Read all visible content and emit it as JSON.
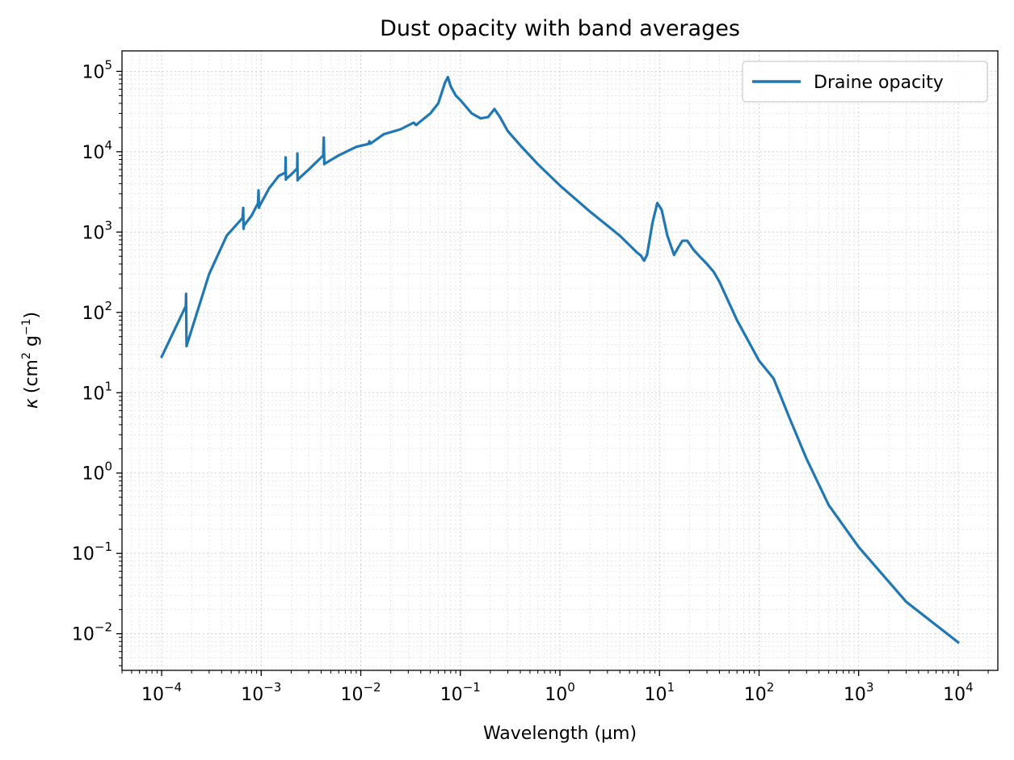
{
  "chart_data": {
    "type": "line",
    "title": "Dust opacity with band averages",
    "xlabel": "Wavelength (µm)",
    "ylabel_symbol": "κ",
    "ylabel_unit_text": "(cm",
    "ylabel_unit_exp1": "2",
    "ylabel_unit_mid": " g",
    "ylabel_unit_exp2": "−1",
    "ylabel_unit_close": ")",
    "xscale": "log",
    "yscale": "log",
    "xlim": [
      4e-05,
      25000
    ],
    "ylim": [
      0.0035,
      180000
    ],
    "xticks_exp": [
      "−4",
      "−3",
      "−2",
      "−1",
      "0",
      "1",
      "2",
      "3",
      "4"
    ],
    "yticks_exp": [
      "−2",
      "−1",
      "0",
      "1",
      "2",
      "3",
      "4",
      "5"
    ],
    "tick_base": "10",
    "grid": true,
    "legend": "top-right",
    "line_color": "#1f77b4",
    "series": [
      {
        "name": "Draine opacity",
        "color": "#1f77b4",
        "x": [
          0.0001,
          0.000175,
          0.000176,
          0.000178,
          0.00018,
          0.0003,
          0.00045,
          0.00065,
          0.00066,
          0.000665,
          0.00067,
          0.0008,
          0.00093,
          0.00094,
          0.00095,
          0.00096,
          0.0012,
          0.0015,
          0.00175,
          0.00176,
          0.00177,
          0.00178,
          0.002,
          0.0023,
          0.00231,
          0.00232,
          0.00233,
          0.003,
          0.0042,
          0.00425,
          0.0043,
          0.00435,
          0.006,
          0.009,
          0.012,
          0.0122,
          0.0125,
          0.017,
          0.025,
          0.034,
          0.036,
          0.04,
          0.05,
          0.06,
          0.07,
          0.075,
          0.08,
          0.09,
          0.1,
          0.13,
          0.16,
          0.19,
          0.22,
          0.25,
          0.3,
          0.4,
          0.6,
          1,
          2,
          4,
          6,
          6.5,
          7,
          7.5,
          8.5,
          9.5,
          10.5,
          12,
          14,
          15.5,
          17,
          19,
          22,
          26,
          30,
          35,
          40,
          60,
          100,
          140,
          200,
          300,
          500,
          1000,
          3000,
          10000
        ],
        "y": [
          28,
          120,
          170,
          38,
          40,
          300,
          900,
          1500,
          2000,
          1100,
          1200,
          1600,
          2300,
          3300,
          2000,
          2100,
          3500,
          5000,
          5500,
          8500,
          4500,
          4600,
          5200,
          6200,
          9500,
          4400,
          4500,
          6000,
          9000,
          15000,
          7000,
          7100,
          9000,
          11500,
          12500,
          13500,
          12600,
          16500,
          19000,
          23000,
          21500,
          24000,
          30000,
          40000,
          72000,
          85000,
          65000,
          50000,
          44000,
          30000,
          26000,
          27000,
          34000,
          27000,
          18000,
          12000,
          7000,
          3800,
          1800,
          900,
          550,
          510,
          440,
          520,
          1300,
          2300,
          1900,
          900,
          520,
          650,
          780,
          780,
          600,
          480,
          400,
          320,
          240,
          80,
          25,
          15,
          5,
          1.5,
          0.4,
          0.12,
          0.025,
          0.0078
        ]
      }
    ]
  }
}
